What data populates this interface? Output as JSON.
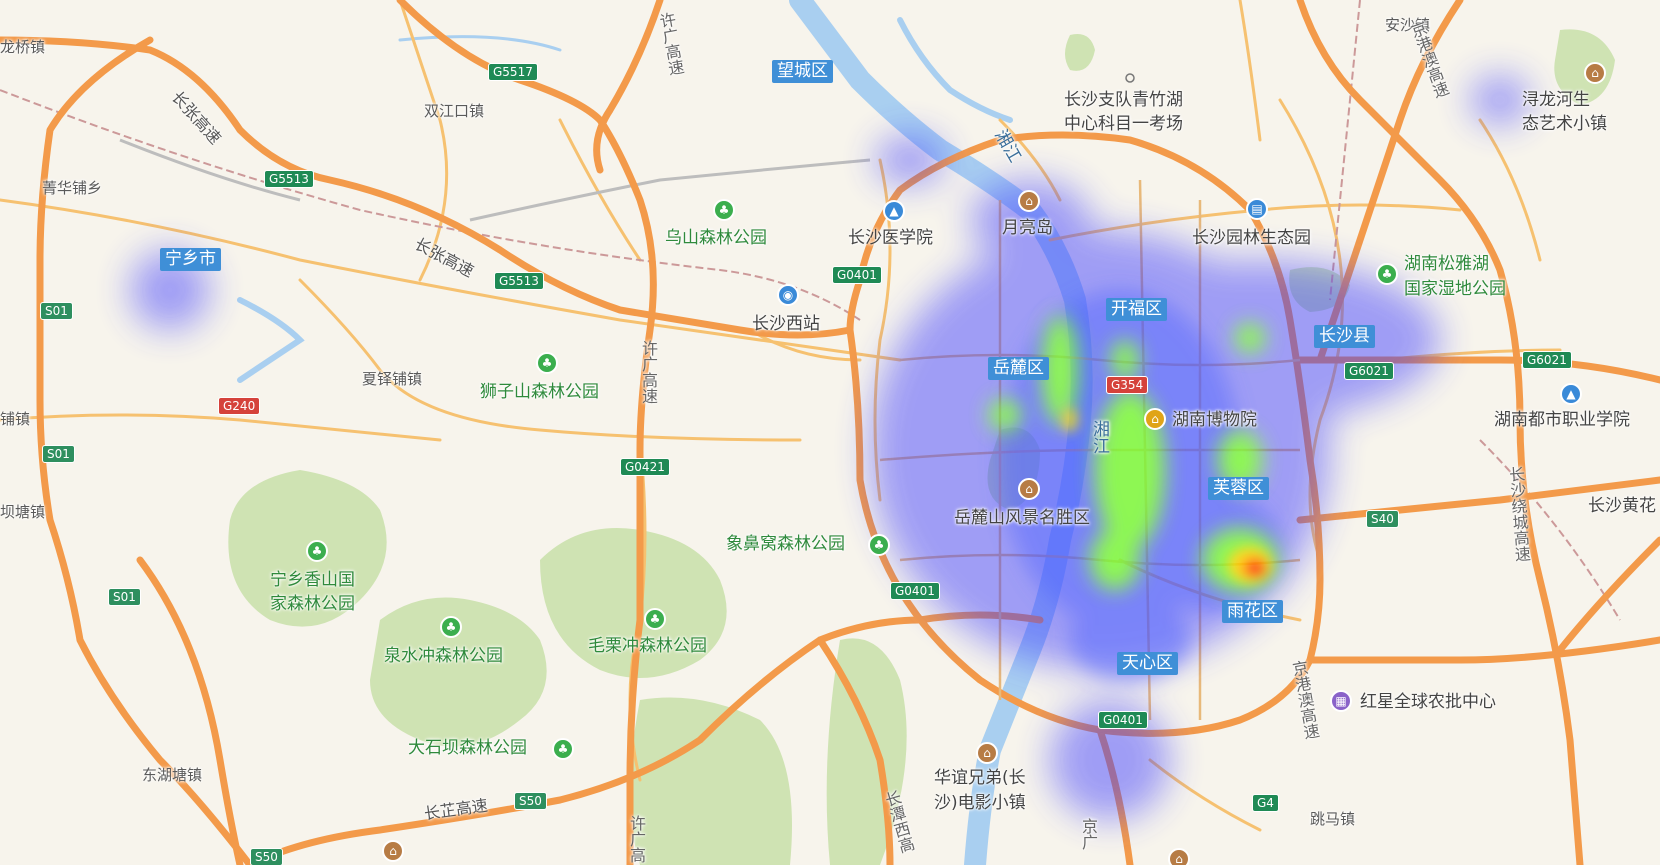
{
  "map": {
    "districts": [
      "望城区",
      "宁乡市",
      "开福区",
      "岳麓区",
      "芙蓉区",
      "长沙县",
      "雨花区",
      "天心区"
    ],
    "pois": {
      "changsha_zhidui": "长沙支队青竹湖",
      "changsha_zhidui2": "中心科目一考场",
      "yueliangdao": "月亮岛",
      "changsha_medical": "长沙医学院",
      "yuanlin": "长沙园林生态园",
      "wushan": "乌山森林公园",
      "songyahu": "湖南松雅湖",
      "songyahu2": "国家湿地公园",
      "west_station": "长沙西站",
      "shizishan": "狮子山森林公园",
      "museum": "湖南博物院",
      "duzhi": "湖南都市职业学院",
      "yuelushan": "岳麓山风景名胜区",
      "xiangbiwo": "象鼻窝森林公园",
      "xiangshan": "宁乡香山国",
      "xiangshan2": "家森林公园",
      "quanshuichong": "泉水冲森林公园",
      "maolichong": "毛栗冲森林公园",
      "hongxing": "红星全球农批中心",
      "dashiba": "大石坝森林公园",
      "huayi": "华谊兄弟(长",
      "huayi2": "沙)电影小镇",
      "xunlonghe": "浔龙河生",
      "xunlonghe2": "态艺术小镇",
      "huanghua": "长沙黄花"
    },
    "towns": [
      "龙桥镇",
      "双江口镇",
      "安沙镇",
      "菁华铺乡",
      "夏铎铺镇",
      "铺镇",
      "坝塘镇",
      "东湖塘镇",
      "跳马镇"
    ],
    "rivers": {
      "xiangjiang": "湘江",
      "heishui": "湘江"
    },
    "roads": {
      "changzhang1": "长张高速",
      "changzhang2": "长张高速",
      "xuguang1": "许广高速",
      "xuguang2": "许广高速",
      "xuguang3": "许广高",
      "jinggang1": "京港澳高速",
      "jinggang2": "京港澳高速",
      "changzhi": "长芷高速",
      "changtan": "长潭西高",
      "raocheng": "长沙绕城高速",
      "jingguang": "京广"
    },
    "shields": [
      "G5517",
      "G5513",
      "G5513",
      "S01",
      "S01",
      "S01",
      "G240",
      "G0401",
      "G0421",
      "G0401",
      "G0401",
      "G354",
      "G6021",
      "G6021",
      "S40",
      "S50",
      "S50",
      "G4"
    ],
    "heatmap": {
      "hotspot_intensity": "high",
      "colors": {
        "low": "#3b3bff",
        "mid": "#7dff2e",
        "high": "#ff1a00"
      }
    },
    "colors": {
      "expressway": "#f39a4a",
      "road": "#f6c170",
      "river": "#a9cff0",
      "green": "#cfe3b3",
      "district_tag": "#3f8fd7"
    }
  }
}
